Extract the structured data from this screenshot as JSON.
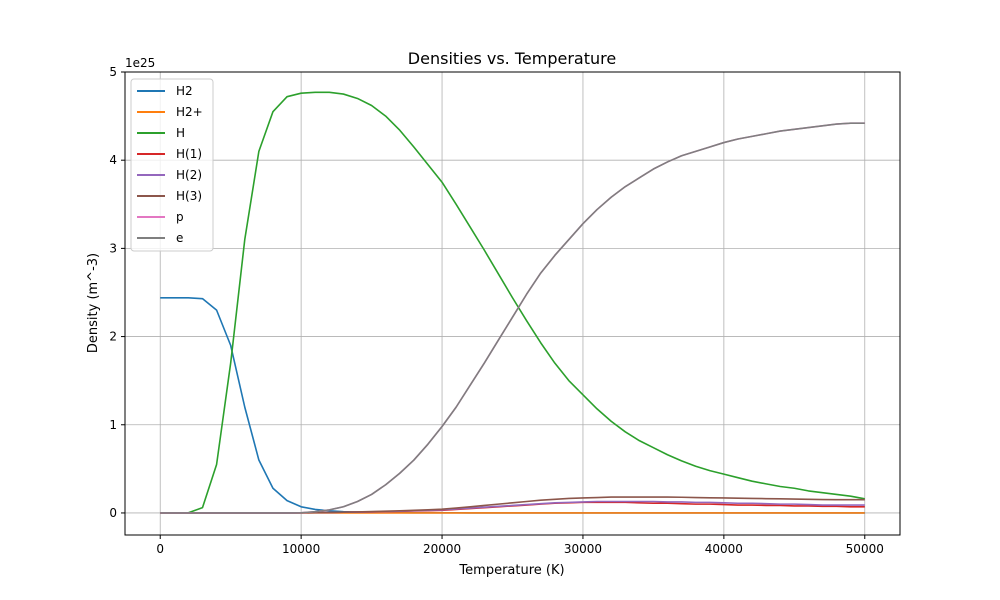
{
  "chart_data": {
    "type": "line",
    "title": "Densities vs. Temperature",
    "xlabel": "Temperature (K)",
    "ylabel": "Density (m^-3)",
    "y_offset_label": "1e25",
    "y_scale_factor": 1e+25,
    "xlim": [
      -2500,
      52500
    ],
    "ylim": [
      -0.25,
      5.0
    ],
    "xticks": [
      0,
      10000,
      20000,
      30000,
      40000,
      50000
    ],
    "yticks": [
      0,
      1,
      2,
      3,
      4,
      5
    ],
    "grid": true,
    "legend_position": "top-left",
    "x": [
      0,
      1000,
      2000,
      3000,
      4000,
      5000,
      6000,
      7000,
      8000,
      9000,
      10000,
      11000,
      12000,
      13000,
      14000,
      15000,
      16000,
      17000,
      18000,
      19000,
      20000,
      21000,
      22000,
      23000,
      24000,
      25000,
      26000,
      27000,
      28000,
      29000,
      30000,
      31000,
      32000,
      33000,
      34000,
      35000,
      36000,
      37000,
      38000,
      39000,
      40000,
      41000,
      42000,
      43000,
      44000,
      45000,
      46000,
      47000,
      48000,
      49000,
      50000
    ],
    "series": [
      {
        "name": "H2",
        "color": "#1f77b4",
        "values": [
          2.44,
          2.44,
          2.44,
          2.43,
          2.3,
          1.9,
          1.2,
          0.6,
          0.28,
          0.14,
          0.07,
          0.04,
          0.025,
          0.015,
          0.01,
          0.006,
          0.004,
          0.003,
          0.002,
          0.001,
          0.001,
          0.001,
          0.0,
          0.0,
          0.0,
          0.0,
          0.0,
          0.0,
          0.0,
          0.0,
          0.0,
          0.0,
          0.0,
          0.0,
          0.0,
          0.0,
          0.0,
          0.0,
          0.0,
          0.0,
          0.0,
          0.0,
          0.0,
          0.0,
          0.0,
          0.0,
          0.0,
          0.0,
          0.0,
          0.0,
          0.0
        ]
      },
      {
        "name": "H2+",
        "color": "#ff7f0e",
        "values": [
          0.0,
          0.0,
          0.0,
          0.0,
          0.0,
          0.0,
          0.0,
          0.0,
          0.0,
          0.0,
          0.0,
          0.0,
          0.0,
          0.0,
          0.0,
          0.0,
          0.0,
          0.0,
          0.0,
          0.0,
          0.0,
          0.0,
          0.0,
          0.0,
          0.0,
          0.0,
          0.0,
          0.0,
          0.0,
          0.0,
          0.0,
          0.0,
          0.0,
          0.0,
          0.0,
          0.0,
          0.0,
          0.0,
          0.0,
          0.0,
          0.0,
          0.0,
          0.0,
          0.0,
          0.0,
          0.0,
          0.0,
          0.0,
          0.0,
          0.0,
          0.0
        ]
      },
      {
        "name": "H",
        "color": "#2ca02c",
        "values": [
          0.0,
          0.0,
          0.002,
          0.06,
          0.55,
          1.7,
          3.1,
          4.1,
          4.55,
          4.72,
          4.76,
          4.77,
          4.77,
          4.75,
          4.7,
          4.62,
          4.5,
          4.34,
          4.15,
          3.95,
          3.75,
          3.5,
          3.24,
          2.98,
          2.71,
          2.44,
          2.18,
          1.93,
          1.7,
          1.5,
          1.34,
          1.18,
          1.04,
          0.92,
          0.82,
          0.74,
          0.66,
          0.59,
          0.53,
          0.48,
          0.44,
          0.4,
          0.36,
          0.33,
          0.3,
          0.28,
          0.25,
          0.23,
          0.21,
          0.19,
          0.16
        ]
      },
      {
        "name": "H(1)",
        "color": "#d62728",
        "values": [
          0.0,
          0.0,
          0.0,
          0.0,
          0.0,
          0.0,
          0.0,
          0.0,
          0.0,
          0.0,
          0.002,
          0.003,
          0.005,
          0.008,
          0.01,
          0.012,
          0.015,
          0.018,
          0.022,
          0.026,
          0.03,
          0.04,
          0.05,
          0.06,
          0.07,
          0.08,
          0.09,
          0.1,
          0.11,
          0.115,
          0.12,
          0.12,
          0.12,
          0.12,
          0.115,
          0.11,
          0.11,
          0.105,
          0.1,
          0.1,
          0.095,
          0.09,
          0.09,
          0.085,
          0.085,
          0.08,
          0.08,
          0.075,
          0.075,
          0.07,
          0.07
        ]
      },
      {
        "name": "H(2)",
        "color": "#9467bd",
        "values": [
          0.0,
          0.0,
          0.0,
          0.0,
          0.0,
          0.0,
          0.0,
          0.0,
          0.0,
          0.0,
          0.002,
          0.003,
          0.005,
          0.008,
          0.01,
          0.013,
          0.016,
          0.02,
          0.025,
          0.03,
          0.036,
          0.045,
          0.055,
          0.065,
          0.075,
          0.085,
          0.095,
          0.105,
          0.115,
          0.12,
          0.125,
          0.13,
          0.13,
          0.13,
          0.13,
          0.13,
          0.125,
          0.125,
          0.12,
          0.12,
          0.115,
          0.11,
          0.11,
          0.105,
          0.1,
          0.1,
          0.095,
          0.09,
          0.09,
          0.09,
          0.09
        ]
      },
      {
        "name": "H(3)",
        "color": "#8c564b",
        "values": [
          0.0,
          0.0,
          0.0,
          0.0,
          0.0,
          0.0,
          0.0,
          0.0,
          0.0,
          0.0,
          0.002,
          0.004,
          0.006,
          0.009,
          0.012,
          0.016,
          0.02,
          0.025,
          0.03,
          0.036,
          0.043,
          0.055,
          0.07,
          0.085,
          0.1,
          0.115,
          0.13,
          0.145,
          0.155,
          0.165,
          0.17,
          0.175,
          0.18,
          0.18,
          0.18,
          0.18,
          0.18,
          0.178,
          0.175,
          0.172,
          0.17,
          0.168,
          0.165,
          0.162,
          0.16,
          0.158,
          0.155,
          0.152,
          0.15,
          0.15,
          0.15
        ]
      },
      {
        "name": "p",
        "color": "#e377c2",
        "values": [
          0.0,
          0.0,
          0.0,
          0.0,
          0.0,
          0.0,
          0.0,
          0.0,
          0.0,
          0.0,
          0.002,
          0.015,
          0.035,
          0.07,
          0.13,
          0.21,
          0.32,
          0.45,
          0.6,
          0.78,
          0.98,
          1.2,
          1.45,
          1.7,
          1.96,
          2.22,
          2.48,
          2.72,
          2.92,
          3.1,
          3.28,
          3.44,
          3.58,
          3.7,
          3.8,
          3.9,
          3.98,
          4.05,
          4.1,
          4.15,
          4.2,
          4.24,
          4.27,
          4.3,
          4.33,
          4.35,
          4.37,
          4.39,
          4.41,
          4.42,
          4.42
        ]
      },
      {
        "name": "e",
        "color": "#7f7f7f",
        "values": [
          0.0,
          0.0,
          0.0,
          0.0,
          0.0,
          0.0,
          0.0,
          0.0,
          0.0,
          0.0,
          0.002,
          0.015,
          0.035,
          0.07,
          0.13,
          0.21,
          0.32,
          0.45,
          0.6,
          0.78,
          0.98,
          1.2,
          1.45,
          1.7,
          1.96,
          2.22,
          2.48,
          2.72,
          2.92,
          3.1,
          3.28,
          3.44,
          3.58,
          3.7,
          3.8,
          3.9,
          3.98,
          4.05,
          4.1,
          4.15,
          4.2,
          4.24,
          4.27,
          4.3,
          4.33,
          4.35,
          4.37,
          4.39,
          4.41,
          4.42,
          4.42
        ]
      }
    ]
  }
}
